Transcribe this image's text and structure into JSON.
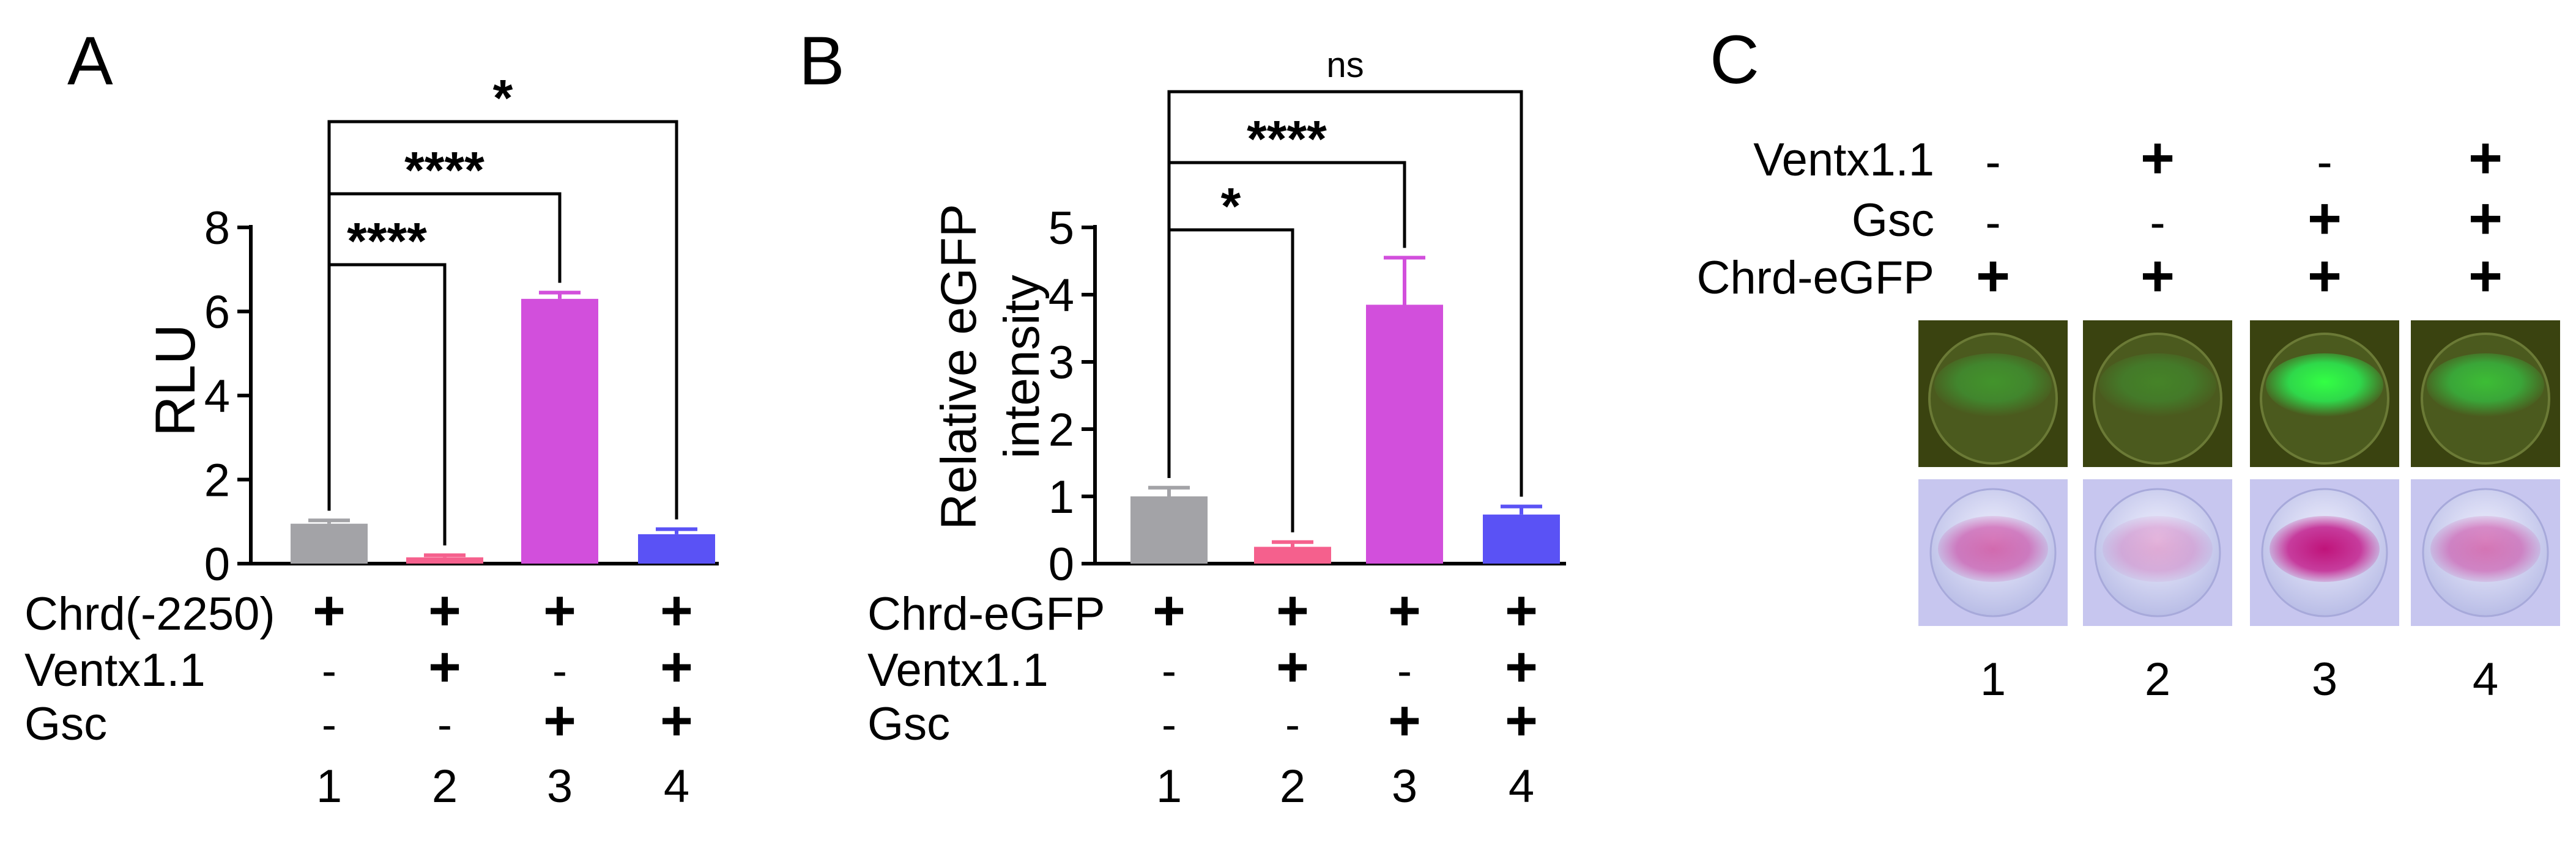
{
  "panels": {
    "A": {
      "letter": "A",
      "ylabel": "RLU",
      "yticks": [
        "0",
        "2",
        "4",
        "6",
        "8"
      ],
      "rows": [
        {
          "label": "Chrd(-2250)",
          "marks": [
            "+",
            "+",
            "+",
            "+"
          ]
        },
        {
          "label": "Ventx1.1",
          "marks": [
            "-",
            "+",
            "-",
            "+"
          ]
        },
        {
          "label": "Gsc",
          "marks": [
            "-",
            "-",
            "+",
            "+"
          ]
        }
      ],
      "lanes": [
        "1",
        "2",
        "3",
        "4"
      ],
      "sig": [
        {
          "label": "****",
          "from": 0,
          "to": 1
        },
        {
          "label": "****",
          "from": 0,
          "to": 2
        },
        {
          "label": "*",
          "from": 0,
          "to": 3
        }
      ]
    },
    "B": {
      "letter": "B",
      "ylabel_line1": "Relative eGFP",
      "ylabel_line2": "intensity",
      "yticks": [
        "0",
        "1",
        "2",
        "3",
        "4",
        "5"
      ],
      "rows": [
        {
          "label": "Chrd-eGFP",
          "marks": [
            "+",
            "+",
            "+",
            "+"
          ]
        },
        {
          "label": "Ventx1.1",
          "marks": [
            "-",
            "+",
            "-",
            "+"
          ]
        },
        {
          "label": "Gsc",
          "marks": [
            "-",
            "-",
            "+",
            "+"
          ]
        }
      ],
      "lanes": [
        "1",
        "2",
        "3",
        "4"
      ],
      "sig": [
        {
          "label": "*",
          "from": 0,
          "to": 1
        },
        {
          "label": "****",
          "from": 0,
          "to": 2
        },
        {
          "label": "ns",
          "from": 0,
          "to": 3
        }
      ]
    },
    "C": {
      "letter": "C",
      "rows": [
        {
          "label": "Ventx1.1",
          "marks": [
            "-",
            "+",
            "-",
            "+"
          ]
        },
        {
          "label": "Gsc",
          "marks": [
            "-",
            "-",
            "+",
            "+"
          ]
        },
        {
          "label": "Chrd-eGFP",
          "marks": [
            "+",
            "+",
            "+",
            "+"
          ]
        }
      ],
      "lanes": [
        "1",
        "2",
        "3",
        "4"
      ],
      "gfp_levels": [
        0.35,
        0.25,
        1.0,
        0.6
      ],
      "stain_levels": [
        0.6,
        0.3,
        1.0,
        0.55
      ]
    }
  },
  "colors": {
    "gray": "#a3a3a7",
    "pink": "#f5608d",
    "magenta": "#d24fdc",
    "blue": "#5a52f5",
    "gfp_bg": "#3a4310",
    "stain_bg": "#c7c6ef"
  },
  "chart_data": [
    {
      "type": "bar",
      "categories": [
        "1",
        "2",
        "3",
        "4"
      ],
      "values": [
        0.95,
        0.15,
        6.3,
        0.7
      ],
      "errors": [
        0.08,
        0.05,
        0.15,
        0.12
      ],
      "ylabel": "RLU",
      "ylim": [
        0,
        8
      ]
    },
    {
      "type": "bar",
      "categories": [
        "1",
        "2",
        "3",
        "4"
      ],
      "values": [
        1.0,
        0.25,
        3.85,
        0.73
      ],
      "errors": [
        0.13,
        0.07,
        0.7,
        0.12
      ],
      "ylabel": "Relative eGFP intensity",
      "ylim": [
        0,
        5
      ]
    }
  ]
}
